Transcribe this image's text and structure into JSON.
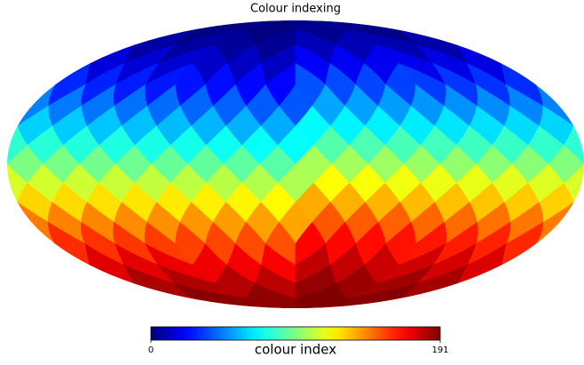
{
  "chart_data": {
    "type": "mollweide",
    "title": "Colour indexing",
    "colorbar_label": "colour index",
    "colormap": "jet",
    "clim": [
      0,
      191
    ],
    "cticks": [
      0,
      191
    ],
    "values": [
      0,
      1,
      2,
      3,
      4,
      5,
      6,
      7,
      8,
      9,
      10,
      11,
      12,
      13,
      14,
      15,
      16,
      17,
      18,
      19,
      20,
      21,
      22,
      23,
      24,
      25,
      26,
      27,
      28,
      29,
      30,
      31,
      32,
      33,
      34,
      35,
      36,
      37,
      38,
      39,
      40,
      41,
      42,
      43,
      44,
      45,
      46,
      47,
      48,
      49,
      50,
      51,
      52,
      53,
      54,
      55,
      56,
      57,
      58,
      59,
      60,
      61,
      62,
      63,
      64,
      65,
      66,
      67,
      68,
      69,
      70,
      71,
      72,
      73,
      74,
      75,
      76,
      77,
      78,
      79,
      80,
      81,
      82,
      83,
      84,
      85,
      86,
      87,
      88,
      89,
      90,
      91,
      92,
      93,
      94,
      95,
      96,
      97,
      98,
      99,
      100,
      101,
      102,
      103,
      104,
      105,
      106,
      107,
      108,
      109,
      110,
      111,
      112,
      113,
      114,
      115,
      116,
      117,
      118,
      119,
      120,
      121,
      122,
      123,
      124,
      125,
      126,
      127,
      128,
      129,
      130,
      131,
      132,
      133,
      134,
      135,
      136,
      137,
      138,
      139,
      140,
      141,
      142,
      143,
      144,
      145,
      146,
      147,
      148,
      149,
      150,
      151,
      152,
      153,
      154,
      155,
      156,
      157,
      158,
      159,
      160,
      161,
      162,
      163,
      164,
      165,
      166,
      167,
      168,
      169,
      170,
      171,
      172,
      173,
      174,
      175,
      176,
      177,
      178,
      179,
      180,
      181,
      182,
      183,
      184,
      185,
      186,
      187,
      188,
      189,
      190,
      191
    ]
  }
}
